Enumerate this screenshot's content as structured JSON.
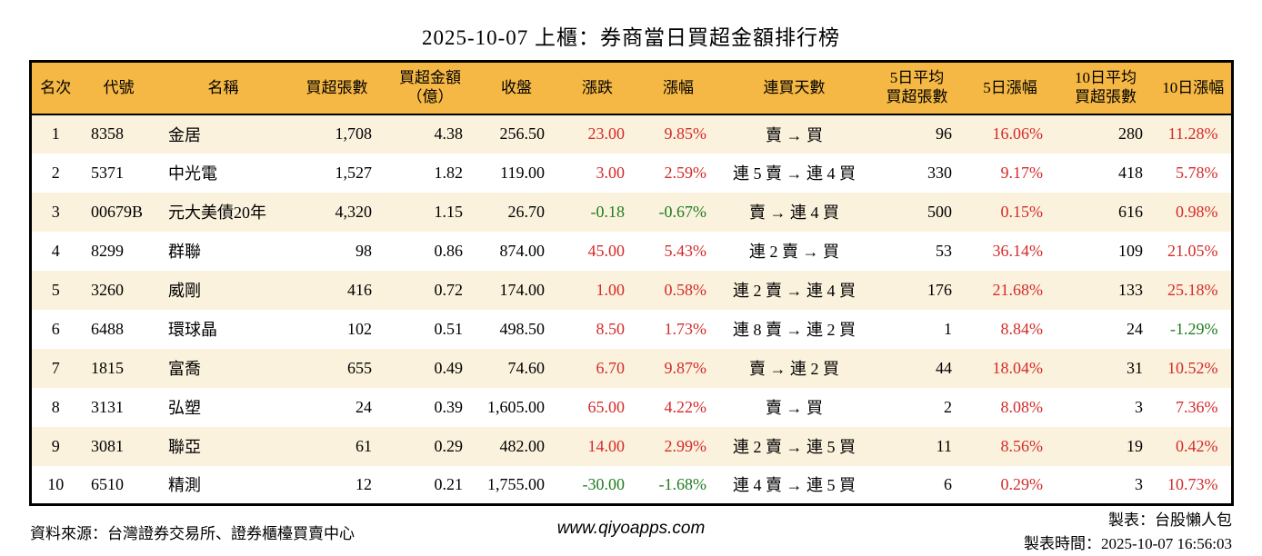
{
  "title": "2025-10-07 上櫃：券商當日買超金額排行榜",
  "colors": {
    "up_red": "#d42a2a",
    "down_green": "#1e7d1e",
    "header_bg": "#f5b844",
    "row_alt_bg": "#fbf2dd",
    "border": "#000000"
  },
  "table": {
    "columns": [
      {
        "label": "名次"
      },
      {
        "label": "代號"
      },
      {
        "label": "名稱"
      },
      {
        "label": "買超張數"
      },
      {
        "label": "買超金額",
        "label2": "（億）"
      },
      {
        "label": "收盤"
      },
      {
        "label": "漲跌"
      },
      {
        "label": "漲幅"
      },
      {
        "label": "連買天數"
      },
      {
        "label": "5日平均",
        "label2": "買超張數"
      },
      {
        "label": "5日漲幅"
      },
      {
        "label": "10日平均",
        "label2": "買超張數"
      },
      {
        "label": "10日漲幅"
      }
    ],
    "rows": [
      [
        "1",
        "8358",
        "金居",
        "1,708",
        "4.38",
        "256.50",
        "23.00",
        "9.85%",
        "賣 → 買",
        "96",
        "16.06%",
        "280",
        "11.28%"
      ],
      [
        "2",
        "5371",
        "中光電",
        "1,527",
        "1.82",
        "119.00",
        "3.00",
        "2.59%",
        "連 5 賣 → 連 4 買",
        "330",
        "9.17%",
        "418",
        "5.78%"
      ],
      [
        "3",
        "00679B",
        "元大美債20年",
        "4,320",
        "1.15",
        "26.70",
        "-0.18",
        "-0.67%",
        "賣 → 連 4 買",
        "500",
        "0.15%",
        "616",
        "0.98%"
      ],
      [
        "4",
        "8299",
        "群聯",
        "98",
        "0.86",
        "874.00",
        "45.00",
        "5.43%",
        "連 2 賣 → 買",
        "53",
        "36.14%",
        "109",
        "21.05%"
      ],
      [
        "5",
        "3260",
        "威剛",
        "416",
        "0.72",
        "174.00",
        "1.00",
        "0.58%",
        "連 2 賣 → 連 4 買",
        "176",
        "21.68%",
        "133",
        "25.18%"
      ],
      [
        "6",
        "6488",
        "環球晶",
        "102",
        "0.51",
        "498.50",
        "8.50",
        "1.73%",
        "連 8 賣 → 連 2 買",
        "1",
        "8.84%",
        "24",
        "-1.29%"
      ],
      [
        "7",
        "1815",
        "富喬",
        "655",
        "0.49",
        "74.60",
        "6.70",
        "9.87%",
        "賣 → 連 2 買",
        "44",
        "18.04%",
        "31",
        "10.52%"
      ],
      [
        "8",
        "3131",
        "弘塑",
        "24",
        "0.39",
        "1,605.00",
        "65.00",
        "4.22%",
        "賣 → 買",
        "2",
        "8.08%",
        "3",
        "7.36%"
      ],
      [
        "9",
        "3081",
        "聯亞",
        "61",
        "0.29",
        "482.00",
        "14.00",
        "2.99%",
        "連 2 賣 → 連 5 買",
        "11",
        "8.56%",
        "19",
        "0.42%"
      ],
      [
        "10",
        "6510",
        "精測",
        "12",
        "0.21",
        "1,755.00",
        "-30.00",
        "-1.68%",
        "連 4 賣 → 連 5 買",
        "6",
        "0.29%",
        "3",
        "10.73%"
      ]
    ]
  },
  "footer": {
    "source": "資料來源：台灣證券交易所、證券櫃檯買賣中心",
    "website": "www.qiyoapps.com",
    "made_by": "製表：台股懶人包",
    "made_time": "製表時間：2025-10-07 16:56:03"
  }
}
